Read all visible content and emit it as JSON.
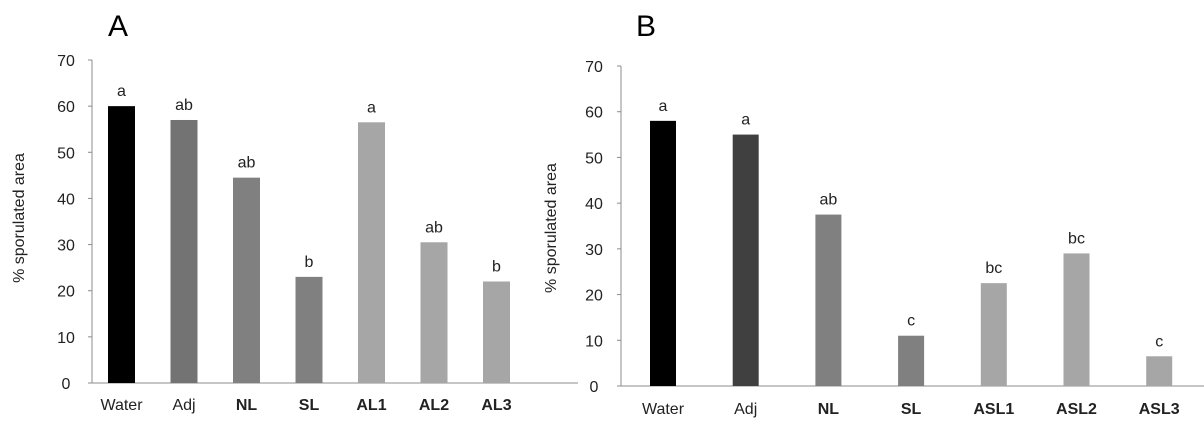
{
  "chart_data": [
    {
      "type": "bar",
      "panel_label": "A",
      "ylabel": "% sporulated area",
      "ylim": [
        0,
        70
      ],
      "yticks": [
        0,
        10,
        20,
        30,
        40,
        50,
        60,
        70
      ],
      "categories": [
        "Water",
        "Adj",
        "NL",
        "SL",
        "AL1",
        "AL2",
        "AL3"
      ],
      "bold_categories": [
        "NL",
        "SL",
        "AL1",
        "AL2",
        "AL3"
      ],
      "values": [
        60,
        57,
        44.5,
        23,
        56.5,
        30.5,
        22
      ],
      "significance_labels": [
        "a",
        "ab",
        "ab",
        "b",
        "a",
        "ab",
        "b"
      ],
      "bar_colors": [
        "#000000",
        "#737373",
        "#808080",
        "#808080",
        "#a6a6a6",
        "#a6a6a6",
        "#a6a6a6"
      ],
      "grid": false,
      "legend": "none"
    },
    {
      "type": "bar",
      "panel_label": "B",
      "ylabel": "% sporulated area",
      "ylim": [
        0,
        70
      ],
      "yticks": [
        0,
        10,
        20,
        30,
        40,
        50,
        60,
        70
      ],
      "categories": [
        "Water",
        "Adj",
        "NL",
        "SL",
        "ASL1",
        "ASL2",
        "ASL3"
      ],
      "bold_categories": [
        "NL",
        "SL",
        "ASL1",
        "ASL2",
        "ASL3"
      ],
      "values": [
        58,
        55,
        37.5,
        11,
        22.5,
        29,
        6.5
      ],
      "significance_labels": [
        "a",
        "a",
        "ab",
        "c",
        "bc",
        "bc",
        "c"
      ],
      "bar_colors": [
        "#000000",
        "#404040",
        "#808080",
        "#808080",
        "#a6a6a6",
        "#a6a6a6",
        "#a6a6a6"
      ],
      "grid": false,
      "legend": "none"
    }
  ]
}
